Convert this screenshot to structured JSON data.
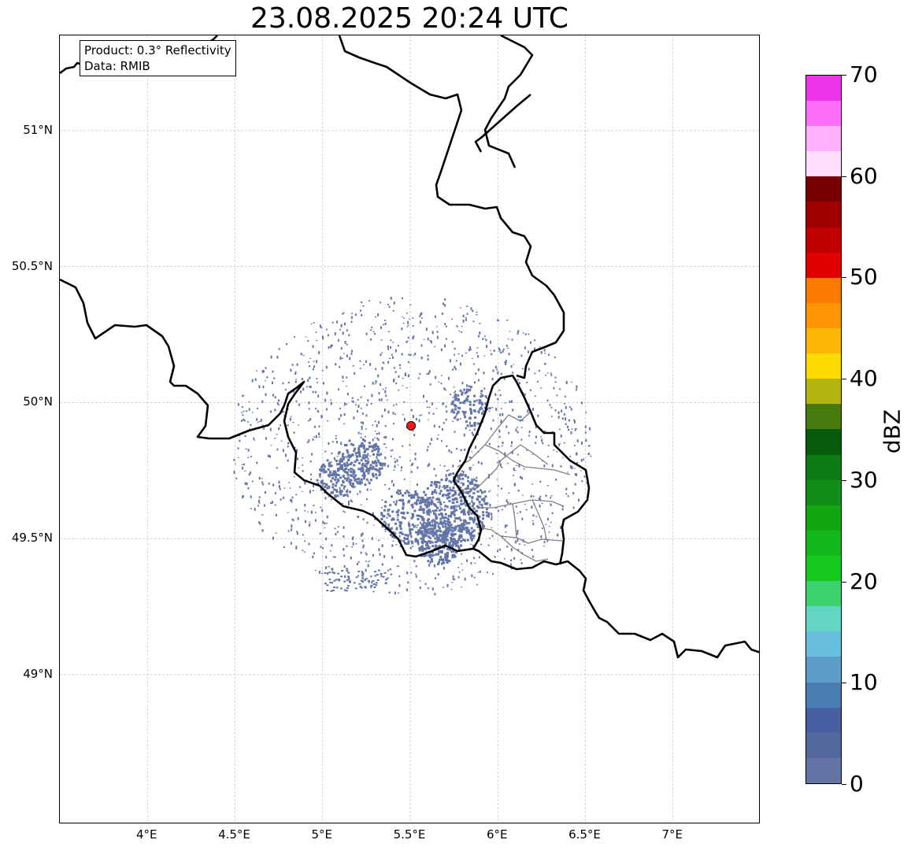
{
  "title": "23.08.2025 20:24 UTC",
  "info": {
    "product": "Product: 0.3° Reflectivity",
    "source": "Data: RMIB"
  },
  "map": {
    "lon_range": [
      3.5,
      7.5
    ],
    "lat_range": [
      48.45,
      51.35
    ],
    "gridlines": true,
    "lon_ticks": [
      {
        "value": 4.0,
        "label": "4°E"
      },
      {
        "value": 4.5,
        "label": "4.5°E"
      },
      {
        "value": 5.0,
        "label": "5°E"
      },
      {
        "value": 5.5,
        "label": "5.5°E"
      },
      {
        "value": 6.0,
        "label": "6°E"
      },
      {
        "value": 6.5,
        "label": "6.5°E"
      },
      {
        "value": 7.0,
        "label": "7°E"
      }
    ],
    "lat_ticks": [
      {
        "value": 51.0,
        "label": "51°N"
      },
      {
        "value": 50.5,
        "label": "50.5°N"
      },
      {
        "value": 50.0,
        "label": "50°N"
      },
      {
        "value": 49.5,
        "label": "49.5°N"
      },
      {
        "value": 49.0,
        "label": "49°N"
      }
    ],
    "radar_site": {
      "lon": 5.505,
      "lat": 49.915,
      "color": "#ee1c1c"
    },
    "echo_color": "#6475a8",
    "border_color": "#000000",
    "subdivision_color": "#808080"
  },
  "colorbar": {
    "label": "dBZ",
    "min": 0,
    "max": 70,
    "ticks": [
      {
        "value": 0,
        "label": "0"
      },
      {
        "value": 10,
        "label": "10"
      },
      {
        "value": 20,
        "label": "20"
      },
      {
        "value": 30,
        "label": "30"
      },
      {
        "value": 40,
        "label": "40"
      },
      {
        "value": 50,
        "label": "50"
      },
      {
        "value": 60,
        "label": "60"
      },
      {
        "value": 70,
        "label": "70"
      }
    ],
    "colors": [
      "#6474a6",
      "#5468a0",
      "#4760a2",
      "#4a7bb1",
      "#5c9ec8",
      "#67bfdc",
      "#63d5c5",
      "#3ad36e",
      "#16c91f",
      "#12b81a",
      "#10a713",
      "#118e18",
      "#0d7b13",
      "#065c0b",
      "#467a0c",
      "#b0b40c",
      "#fdd900",
      "#fbb604",
      "#fc9501",
      "#fb7a02",
      "#e00000",
      "#c10000",
      "#a00000",
      "#780000",
      "#ffddfc",
      "#ffb1fb",
      "#ff6ef8",
      "#ec34ed"
    ]
  }
}
